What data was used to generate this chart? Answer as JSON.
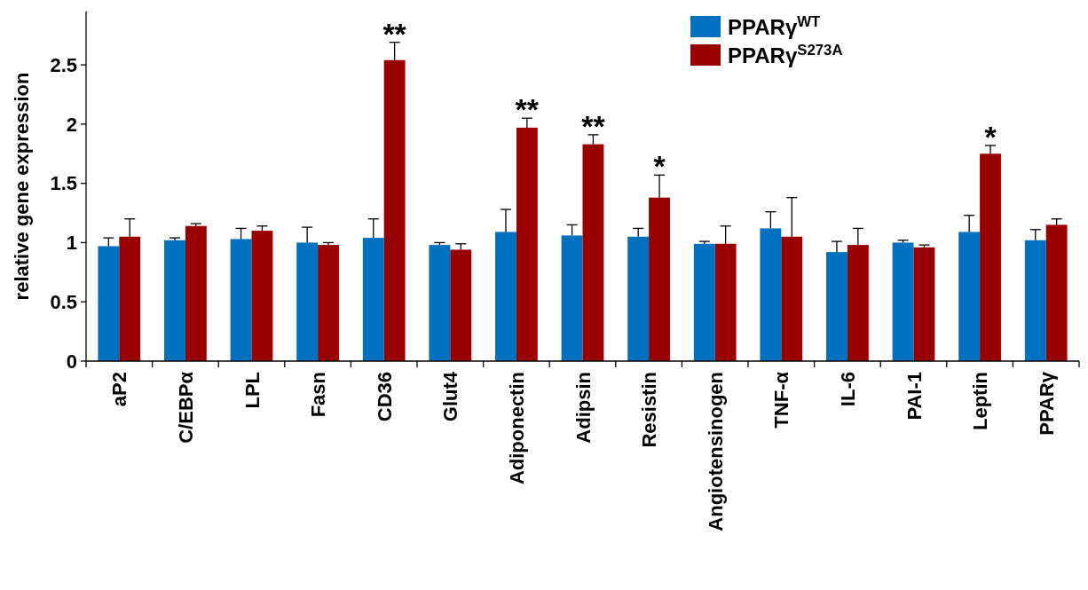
{
  "chart_data": {
    "type": "bar",
    "ylabel": "relative gene expression",
    "categories": [
      "aP2",
      "C/EBPα",
      "LPL",
      "Fasn",
      "CD36",
      "Glut4",
      "Adiponectin",
      "Adipsin",
      "Resistin",
      "Angiotensinogen",
      "TNF-α",
      "IL-6",
      "PAI-1",
      "Leptin",
      "PPARγ"
    ],
    "series": [
      {
        "name": "PPARγ$^{WT}$",
        "color": "#0070c0",
        "values": [
          0.97,
          1.02,
          1.03,
          1.0,
          1.04,
          0.98,
          1.09,
          1.06,
          1.05,
          0.99,
          1.12,
          0.92,
          1.0,
          1.09,
          1.02
        ],
        "errors": [
          [
            0.97,
            1.04
          ],
          [
            1.02,
            1.04
          ],
          [
            1.03,
            1.12
          ],
          [
            1.0,
            1.13
          ],
          [
            1.04,
            1.2
          ],
          [
            0.98,
            1.0
          ],
          [
            1.09,
            1.28
          ],
          [
            1.06,
            1.15
          ],
          [
            1.05,
            1.12
          ],
          [
            0.99,
            1.01
          ],
          [
            1.12,
            1.26
          ],
          [
            0.92,
            1.01
          ],
          [
            1.0,
            1.02
          ],
          [
            1.09,
            1.23
          ],
          [
            1.02,
            1.11
          ]
        ]
      },
      {
        "name": "PPARγ$^{S273A}$",
        "color": "#990000",
        "values": [
          1.05,
          1.14,
          1.1,
          0.98,
          2.54,
          0.94,
          1.97,
          1.83,
          1.38,
          0.99,
          1.05,
          0.98,
          0.96,
          1.75,
          1.15
        ],
        "errors": [
          [
            1.05,
            1.2
          ],
          [
            1.14,
            1.16
          ],
          [
            1.1,
            1.14
          ],
          [
            0.98,
            1.0
          ],
          [
            2.54,
            2.69
          ],
          [
            0.94,
            0.99
          ],
          [
            1.97,
            2.05
          ],
          [
            1.83,
            1.91
          ],
          [
            1.38,
            1.57
          ],
          [
            0.99,
            1.14
          ],
          [
            1.05,
            1.38
          ],
          [
            0.98,
            1.12
          ],
          [
            0.96,
            0.98
          ],
          [
            1.75,
            1.82
          ],
          [
            1.15,
            1.2
          ]
        ],
        "value_labels": [
          null,
          null,
          null,
          null,
          "**",
          null,
          "**",
          "**",
          "*",
          null,
          null,
          null,
          null,
          "*",
          null
        ]
      }
    ],
    "ylim": [
      0,
      2.95
    ],
    "yticks": [
      0,
      0.5,
      1,
      1.5,
      2,
      2.5
    ],
    "legend": "top right"
  }
}
